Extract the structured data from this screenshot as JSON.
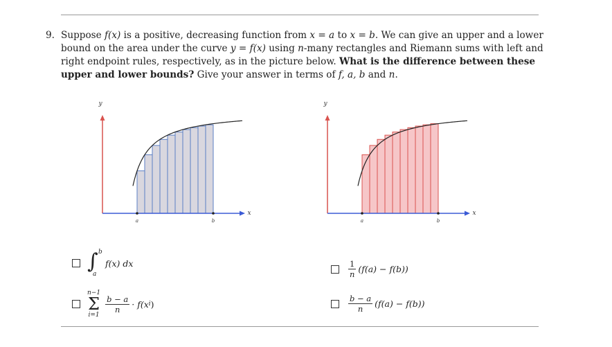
{
  "question": {
    "number": "9.",
    "part1": "Suppose ",
    "f_of_x": "f(x)",
    "part2": " is a positive, decreasing function from ",
    "x_eq_a": "x = a",
    "part3": " to ",
    "x_eq_b": "x = b",
    "part4": ". We can give an upper and a lower bound on the area under the curve ",
    "y_eq": "y = f(x)",
    "part5": " using ",
    "n_var": "n",
    "part6": "-many rectangles and Riemann sums with left and right endpoint rules, respectively, as in the picture below. ",
    "bold": "What is the difference between these upper and lower bounds?",
    "part7": " Give your answer in terms of ",
    "vars": "f, a, b",
    "part8": " and ",
    "n_var2": "n",
    "part9": "."
  },
  "graphs": {
    "y_label": "y",
    "x_label": "x",
    "a_label": "a",
    "b_label": "b",
    "colors": {
      "left_fill": "#d9d7df",
      "left_stroke": "#5b7fc4",
      "right_fill": "#f6c6c8",
      "right_stroke": "#d9534f",
      "y_axis": "#d9534f",
      "x_axis": "#3b5bd6",
      "curve": "#222222"
    }
  },
  "options": {
    "opt1": {
      "fx": "f(x)",
      "dx": "dx",
      "upper": "b",
      "lower": "a"
    },
    "opt2": {
      "upper": "n−1",
      "lower": "i=1",
      "num": "b − a",
      "den": "n",
      "tail": "· f(x",
      "sub": "i",
      "close": ")"
    },
    "opt3": {
      "num": "1",
      "den": "n",
      "expr": "(f(a) − f(b))"
    },
    "opt4": {
      "num": "b − a",
      "den": "n",
      "expr": "(f(a) − f(b))"
    }
  }
}
